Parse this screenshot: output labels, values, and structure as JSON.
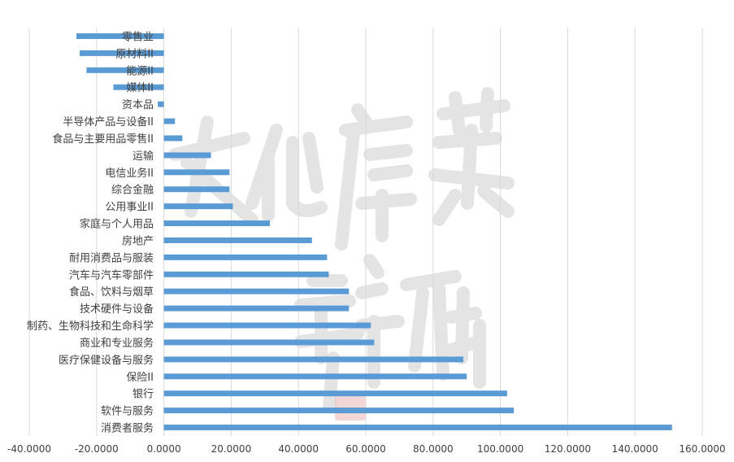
{
  "chart_data": {
    "type": "bar",
    "orientation": "horizontal",
    "categories": [
      "零售业",
      "原材料II",
      "能源II",
      "媒体II",
      "资本品",
      "半导体产品与设备II",
      "食品与主要用品零售II",
      "运输",
      "电信业务II",
      "综合金融",
      "公用事业II",
      "家庭与个人用品",
      "房地产",
      "耐用消费品与服装",
      "汽车与汽车零部件",
      "食品、饮料与烟草",
      "技术硬件与设备",
      "制药、生物科技和生命科学",
      "商业和专业服务",
      "医疗保健设备与服务",
      "保险II",
      "银行",
      "软件与服务",
      "消费者服务"
    ],
    "values": [
      -26.0,
      -25.0,
      -23.0,
      -15.0,
      -1.8,
      3.3,
      5.5,
      14.0,
      19.5,
      19.5,
      20.5,
      31.5,
      44.0,
      48.5,
      49.0,
      55.0,
      55.0,
      61.5,
      62.5,
      89.0,
      90.0,
      102.0,
      104.0,
      151.0
    ],
    "x_ticks": [
      "-40.0000",
      "-20.0000",
      "0.0000",
      "20.0000",
      "40.0000",
      "60.0000",
      "80.0000",
      "100.0000",
      "120.0000",
      "140.0000",
      "160.0000"
    ],
    "xlim": [
      -40,
      160
    ],
    "title": "",
    "xlabel": "",
    "ylabel": "",
    "grid": "vertical",
    "bar_color": "#5b9bd5",
    "watermark_color": "#d9d9d9"
  }
}
